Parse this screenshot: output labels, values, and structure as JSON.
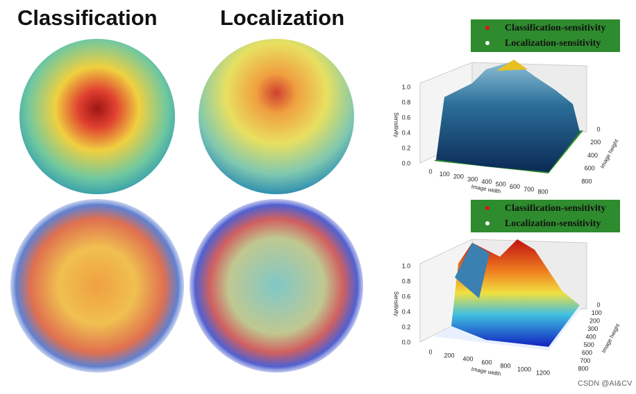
{
  "titles": [
    "Classification",
    "Localization"
  ],
  "panels": [
    {
      "legend": [
        "Classification-sensitivity",
        "Localization-sensitivity"
      ],
      "z_label": "Sensitivity",
      "x_label": "Image width",
      "y_label": "Image height",
      "z_ticks": [
        "0.0",
        "0.2",
        "0.4",
        "0.6",
        "0.8",
        "1.0"
      ],
      "x_ticks": [
        "0",
        "100",
        "200",
        "300",
        "400",
        "500",
        "600",
        "700",
        "800"
      ],
      "y_ticks": [
        "0",
        "200",
        "400",
        "600",
        "800"
      ]
    },
    {
      "legend": [
        "Classification-sensitivity",
        "Localization-sensitivity"
      ],
      "z_label": "Sensitivity",
      "x_label": "Image width",
      "y_label": "Image height",
      "z_ticks": [
        "0.0",
        "0.2",
        "0.4",
        "0.6",
        "0.8",
        "1.0"
      ],
      "x_ticks": [
        "0",
        "200",
        "400",
        "600",
        "800",
        "1000",
        "1200"
      ],
      "y_ticks": [
        "0",
        "100",
        "200",
        "300",
        "400",
        "500",
        "600",
        "700",
        "800"
      ]
    }
  ],
  "watermark": "CSDN @AI&CV"
}
